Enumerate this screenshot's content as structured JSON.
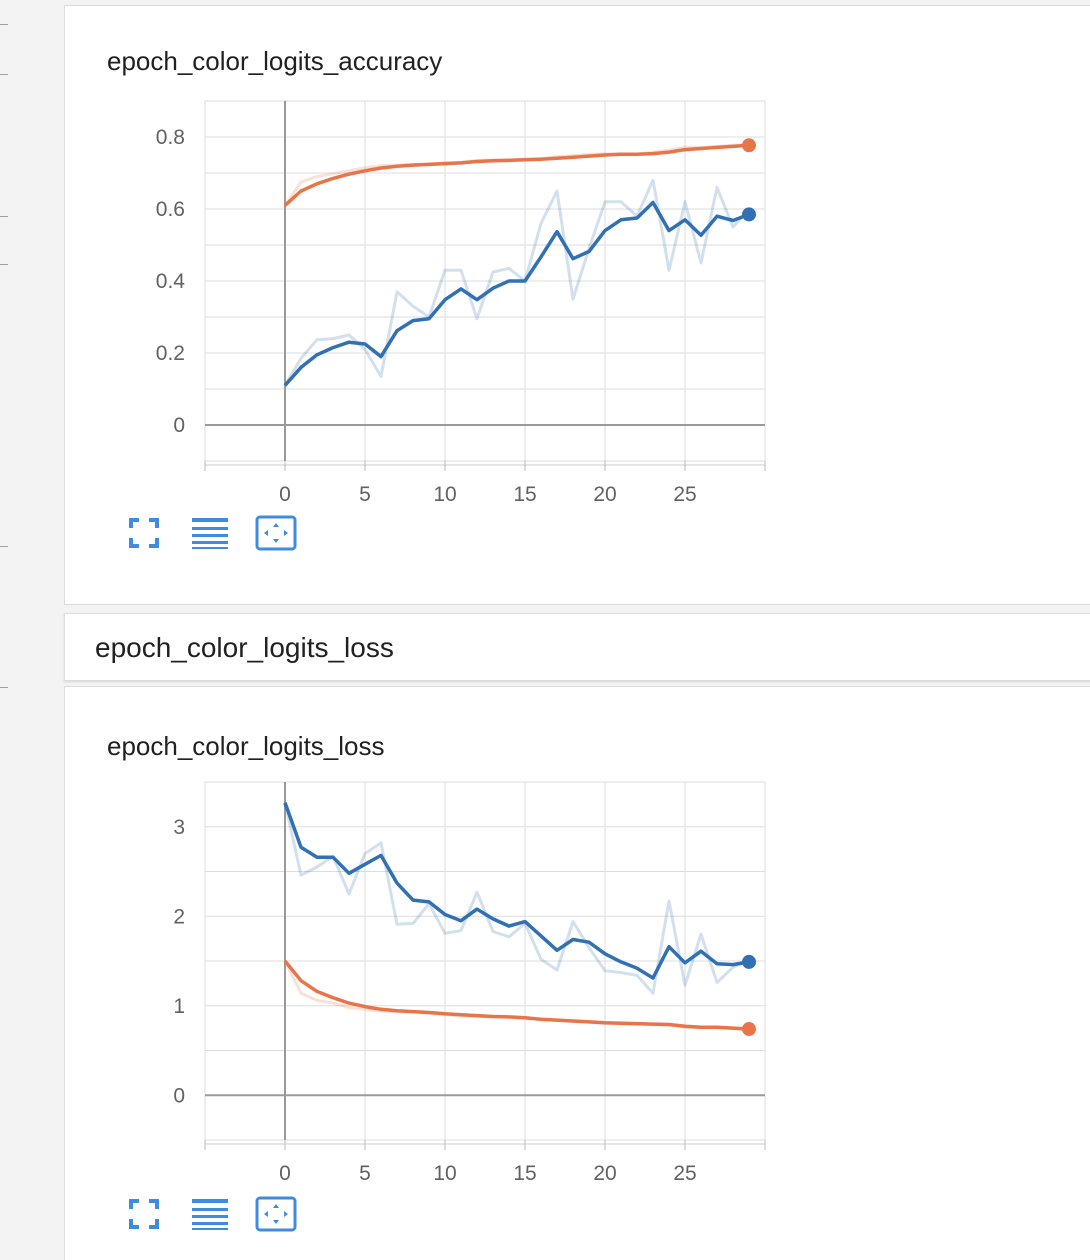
{
  "colors": {
    "accent": "#3f8be0",
    "orange": "#e8754a",
    "blue": "#3170b3",
    "grid": "#dddddd"
  },
  "group": {
    "title": "epoch_color_logits_loss"
  },
  "toolbar_icons": [
    "fullscreen-icon",
    "data-table-icon",
    "fit-domain-icon"
  ],
  "charts": [
    {
      "title": "epoch_color_logits_accuracy"
    },
    {
      "title": "epoch_color_logits_loss"
    }
  ],
  "chart_data": [
    {
      "type": "line",
      "title": "epoch_color_logits_accuracy",
      "xlim": [
        -5,
        30
      ],
      "ylim": [
        -0.1,
        0.9
      ],
      "xticks": [
        0,
        5,
        10,
        15,
        20,
        25
      ],
      "xtick_labels": [
        "0",
        "5",
        "10",
        "15",
        "20",
        "25"
      ],
      "yticks": [
        0,
        0.2,
        0.4,
        0.6,
        0.8
      ],
      "ytick_labels": [
        "0",
        "0.2",
        "0.4",
        "0.6",
        "0.8"
      ],
      "grid": true,
      "x": [
        0,
        1,
        2,
        3,
        4,
        5,
        6,
        7,
        8,
        9,
        10,
        11,
        12,
        13,
        14,
        15,
        16,
        17,
        18,
        19,
        20,
        21,
        22,
        23,
        24,
        25,
        26,
        27,
        28,
        29
      ],
      "series": [
        {
          "color": "#e8754a",
          "smoothed": [
            0.61,
            0.65,
            0.67,
            0.685,
            0.697,
            0.706,
            0.714,
            0.719,
            0.722,
            0.724,
            0.726,
            0.728,
            0.732,
            0.734,
            0.735,
            0.737,
            0.738,
            0.741,
            0.744,
            0.747,
            0.75,
            0.752,
            0.752,
            0.754,
            0.758,
            0.765,
            0.768,
            0.771,
            0.774,
            0.777
          ],
          "raw": [
            0.61,
            0.675,
            0.69,
            0.698,
            0.706,
            0.715,
            0.72,
            0.722,
            0.724,
            0.725,
            0.728,
            0.73,
            0.735,
            0.736,
            0.737,
            0.738,
            0.74,
            0.745,
            0.748,
            0.752,
            0.753,
            0.753,
            0.752,
            0.758,
            0.763,
            0.772,
            0.77,
            0.774,
            0.777,
            0.779
          ]
        },
        {
          "color": "#3170b3",
          "smoothed": [
            0.11,
            0.16,
            0.195,
            0.215,
            0.23,
            0.225,
            0.19,
            0.262,
            0.29,
            0.295,
            0.348,
            0.378,
            0.348,
            0.38,
            0.4,
            0.4,
            0.467,
            0.537,
            0.462,
            0.482,
            0.54,
            0.57,
            0.575,
            0.618,
            0.54,
            0.57,
            0.527,
            0.58,
            0.568,
            0.585
          ],
          "raw": [
            0.11,
            0.185,
            0.237,
            0.24,
            0.25,
            0.21,
            0.135,
            0.37,
            0.33,
            0.3,
            0.43,
            0.43,
            0.295,
            0.425,
            0.435,
            0.4,
            0.56,
            0.65,
            0.35,
            0.49,
            0.62,
            0.62,
            0.58,
            0.68,
            0.43,
            0.62,
            0.45,
            0.66,
            0.55,
            0.6
          ]
        }
      ]
    },
    {
      "type": "line",
      "title": "epoch_color_logits_loss",
      "xlim": [
        -5,
        30
      ],
      "ylim": [
        -0.5,
        3.5
      ],
      "xticks": [
        0,
        5,
        10,
        15,
        20,
        25
      ],
      "xtick_labels": [
        "0",
        "5",
        "10",
        "15",
        "20",
        "25"
      ],
      "yticks": [
        0,
        1,
        2,
        3
      ],
      "ytick_labels": [
        "0",
        "1",
        "2",
        "3"
      ],
      "grid": true,
      "x": [
        0,
        1,
        2,
        3,
        4,
        5,
        6,
        7,
        8,
        9,
        10,
        11,
        12,
        13,
        14,
        15,
        16,
        17,
        18,
        19,
        20,
        21,
        22,
        23,
        24,
        25,
        26,
        27,
        28,
        29
      ],
      "series": [
        {
          "color": "#3170b3",
          "smoothed": [
            3.27,
            2.77,
            2.66,
            2.66,
            2.48,
            2.58,
            2.68,
            2.37,
            2.18,
            2.16,
            2.02,
            1.95,
            2.08,
            1.97,
            1.89,
            1.94,
            1.78,
            1.62,
            1.74,
            1.71,
            1.58,
            1.49,
            1.42,
            1.31,
            1.66,
            1.48,
            1.61,
            1.47,
            1.46,
            1.49
          ],
          "raw": [
            3.27,
            2.46,
            2.55,
            2.67,
            2.25,
            2.7,
            2.82,
            1.91,
            1.92,
            2.14,
            1.81,
            1.84,
            2.27,
            1.83,
            1.77,
            1.92,
            1.52,
            1.4,
            1.94,
            1.65,
            1.39,
            1.37,
            1.34,
            1.14,
            2.17,
            1.23,
            1.8,
            1.26,
            1.43,
            1.51
          ]
        },
        {
          "color": "#e8754a",
          "smoothed": [
            1.5,
            1.28,
            1.16,
            1.09,
            1.03,
            0.99,
            0.96,
            0.945,
            0.935,
            0.925,
            0.91,
            0.9,
            0.89,
            0.88,
            0.875,
            0.865,
            0.85,
            0.84,
            0.83,
            0.82,
            0.81,
            0.805,
            0.8,
            0.795,
            0.79,
            0.77,
            0.76,
            0.76,
            0.75,
            0.74
          ],
          "raw": [
            1.5,
            1.14,
            1.06,
            1.03,
            0.98,
            0.96,
            0.94,
            0.935,
            0.93,
            0.915,
            0.9,
            0.89,
            0.88,
            0.875,
            0.87,
            0.86,
            0.845,
            0.835,
            0.825,
            0.815,
            0.805,
            0.8,
            0.795,
            0.79,
            0.785,
            0.76,
            0.755,
            0.755,
            0.745,
            0.735
          ]
        }
      ]
    }
  ]
}
